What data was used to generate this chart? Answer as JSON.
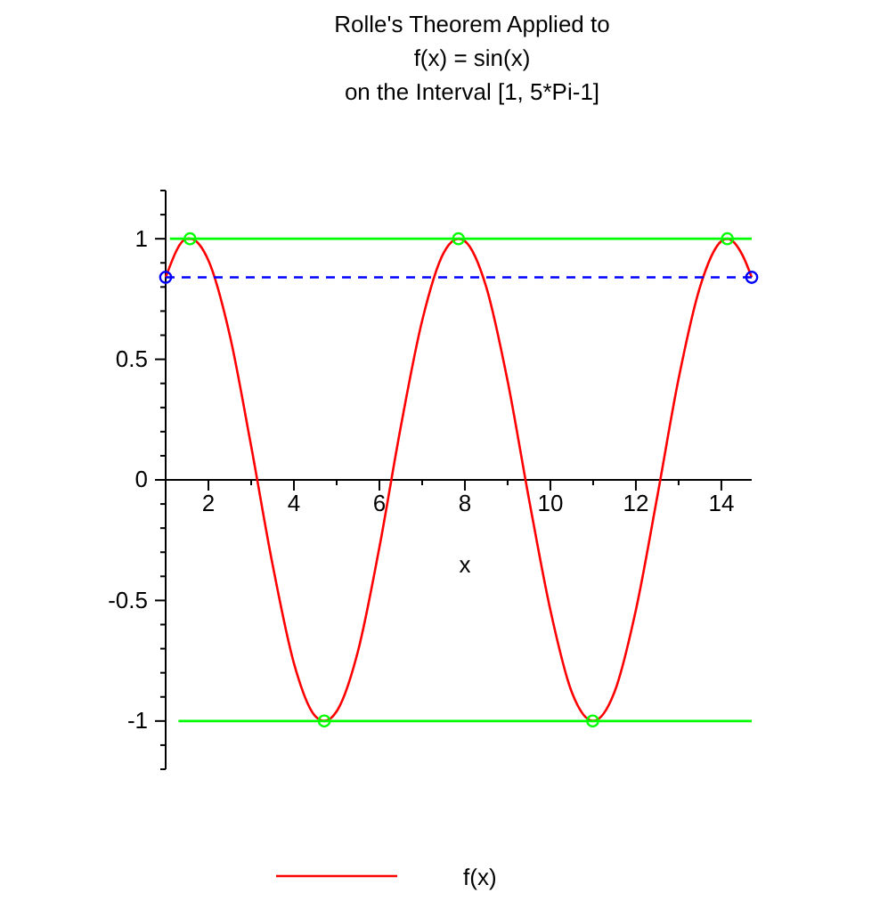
{
  "chart_data": {
    "type": "line",
    "title": "Rolle's Theorem Applied to\nf(x) = sin(x)\non the Interval [1, 5*Pi-1]",
    "xlabel": "x",
    "xlim": [
      1,
      14.71
    ],
    "ylim": [
      -1.2,
      1.2
    ],
    "xticks": [
      2,
      {
        "value": 3,
        "label": null
      },
      4,
      {
        "value": 5,
        "label": null
      },
      6,
      {
        "value": 7,
        "label": null
      },
      8,
      {
        "value": 9,
        "label": null
      },
      10,
      {
        "value": 11,
        "label": null
      },
      12,
      {
        "value": 13,
        "label": null
      },
      14
    ],
    "yticks": [
      {
        "value": -1.2,
        "label": null
      },
      {
        "value": -1.1,
        "label": null
      },
      -1,
      {
        "value": -0.9,
        "label": null
      },
      {
        "value": -0.8,
        "label": null
      },
      {
        "value": -0.7,
        "label": null
      },
      {
        "value": -0.6,
        "label": null
      },
      -0.5,
      {
        "value": -0.4,
        "label": null
      },
      {
        "value": -0.3,
        "label": null
      },
      {
        "value": -0.2,
        "label": null
      },
      {
        "value": -0.1,
        "label": null
      },
      0,
      {
        "value": 0.1,
        "label": null
      },
      {
        "value": 0.2,
        "label": null
      },
      {
        "value": 0.3,
        "label": null
      },
      {
        "value": 0.4,
        "label": null
      },
      0.5,
      {
        "value": 0.6,
        "label": null
      },
      {
        "value": 0.7,
        "label": null
      },
      {
        "value": 0.8,
        "label": null
      },
      {
        "value": 0.9,
        "label": null
      },
      1,
      {
        "value": 1.1,
        "label": null
      },
      {
        "value": 1.2,
        "label": null
      }
    ],
    "grid": false,
    "legend": "bottom",
    "series": [
      {
        "name": "f(x)",
        "color": "#ff0000",
        "marker": "none",
        "line_style": "solid",
        "x": [
          1,
          1.5,
          1.57,
          2,
          2.5,
          3,
          3.5,
          4,
          4.5,
          4.71,
          5,
          5.5,
          6,
          6.5,
          7,
          7.5,
          7.85,
          8,
          8.5,
          9,
          9.5,
          10,
          10.5,
          11,
          11.5,
          12,
          12.5,
          13,
          13.5,
          14,
          14.14,
          14.5,
          14.71
        ],
        "values": [
          0.84,
          1.0,
          1,
          0.91,
          0.6,
          0.14,
          -0.35,
          -0.76,
          -0.98,
          -1,
          -0.96,
          -0.71,
          -0.28,
          0.22,
          0.66,
          0.94,
          1,
          0.99,
          0.8,
          0.41,
          -0.08,
          -0.54,
          -0.88,
          -1,
          -0.88,
          -0.54,
          -0.07,
          0.42,
          0.8,
          0.99,
          1,
          0.93,
          0.84
        ]
      },
      {
        "color": "#00ff00",
        "marker": "none",
        "line_style": "solid",
        "x": [
          1.1,
          14.71
        ],
        "values": [
          1,
          1
        ]
      },
      {
        "color": "#00ff00",
        "marker": "none",
        "line_style": "solid",
        "x": [
          1.3,
          14.71
        ],
        "values": [
          -1,
          -1
        ]
      },
      {
        "color": "#0000ff",
        "marker": "circle",
        "line_style": "dashed",
        "x": [
          1,
          14.71
        ],
        "values": [
          0.84,
          0.84
        ]
      },
      {
        "type": "scatter",
        "color": "#00ff00",
        "marker": "circle",
        "x": [
          1.57,
          7.85,
          14.14,
          4.71,
          10.99
        ],
        "values": [
          1,
          1,
          1,
          -1,
          -1
        ]
      }
    ]
  }
}
